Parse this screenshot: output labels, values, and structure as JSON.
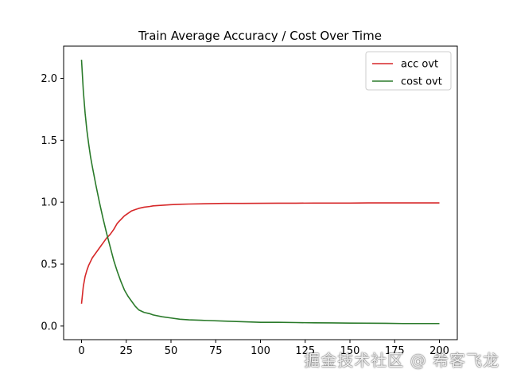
{
  "chart_data": {
    "type": "line",
    "title": "Train Average Accuracy / Cost Over Time",
    "xlabel": "",
    "ylabel": "",
    "xlim": [
      -10,
      210
    ],
    "ylim": [
      -0.11,
      2.26
    ],
    "xticks": [
      0,
      25,
      50,
      75,
      100,
      125,
      150,
      175,
      200
    ],
    "yticks": [
      0.0,
      0.5,
      1.0,
      1.5,
      2.0
    ],
    "xtick_labels": [
      "0",
      "25",
      "50",
      "75",
      "100",
      "125",
      "150",
      "175",
      "200"
    ],
    "ytick_labels": [
      "0.0",
      "0.5",
      "1.0",
      "1.5",
      "2.0"
    ],
    "grid": false,
    "legend_position": "top-right",
    "series": [
      {
        "name": "acc ovt",
        "color": "#d62728",
        "x": [
          0,
          1,
          2,
          3,
          4,
          5,
          6,
          8,
          10,
          12,
          14,
          16,
          18,
          20,
          22,
          24,
          26,
          28,
          30,
          32,
          35,
          38,
          40,
          45,
          50,
          55,
          60,
          70,
          80,
          90,
          100,
          110,
          120,
          130,
          140,
          150,
          160,
          170,
          180,
          190,
          200
        ],
        "values": [
          0.18,
          0.32,
          0.4,
          0.45,
          0.49,
          0.52,
          0.55,
          0.59,
          0.63,
          0.67,
          0.71,
          0.74,
          0.78,
          0.83,
          0.86,
          0.89,
          0.91,
          0.93,
          0.94,
          0.95,
          0.96,
          0.965,
          0.97,
          0.975,
          0.98,
          0.983,
          0.985,
          0.988,
          0.99,
          0.99,
          0.991,
          0.992,
          0.992,
          0.993,
          0.993,
          0.993,
          0.994,
          0.994,
          0.994,
          0.994,
          0.994
        ]
      },
      {
        "name": "cost ovt",
        "color": "#2a7a2a",
        "x": [
          0,
          1,
          2,
          3,
          4,
          5,
          6,
          8,
          10,
          12,
          14,
          16,
          18,
          20,
          22,
          24,
          26,
          28,
          30,
          32,
          35,
          38,
          40,
          45,
          50,
          55,
          60,
          70,
          80,
          90,
          100,
          110,
          120,
          130,
          140,
          150,
          160,
          170,
          180,
          190,
          200
        ],
        "values": [
          2.15,
          1.9,
          1.72,
          1.58,
          1.47,
          1.37,
          1.29,
          1.14,
          1.0,
          0.87,
          0.75,
          0.64,
          0.53,
          0.44,
          0.36,
          0.29,
          0.24,
          0.2,
          0.16,
          0.13,
          0.11,
          0.1,
          0.09,
          0.075,
          0.065,
          0.055,
          0.05,
          0.045,
          0.04,
          0.035,
          0.03,
          0.03,
          0.028,
          0.026,
          0.025,
          0.024,
          0.023,
          0.022,
          0.02,
          0.02,
          0.02
        ]
      }
    ]
  },
  "watermark": {
    "text": "掘金技术社区 @ 希客飞龙"
  }
}
